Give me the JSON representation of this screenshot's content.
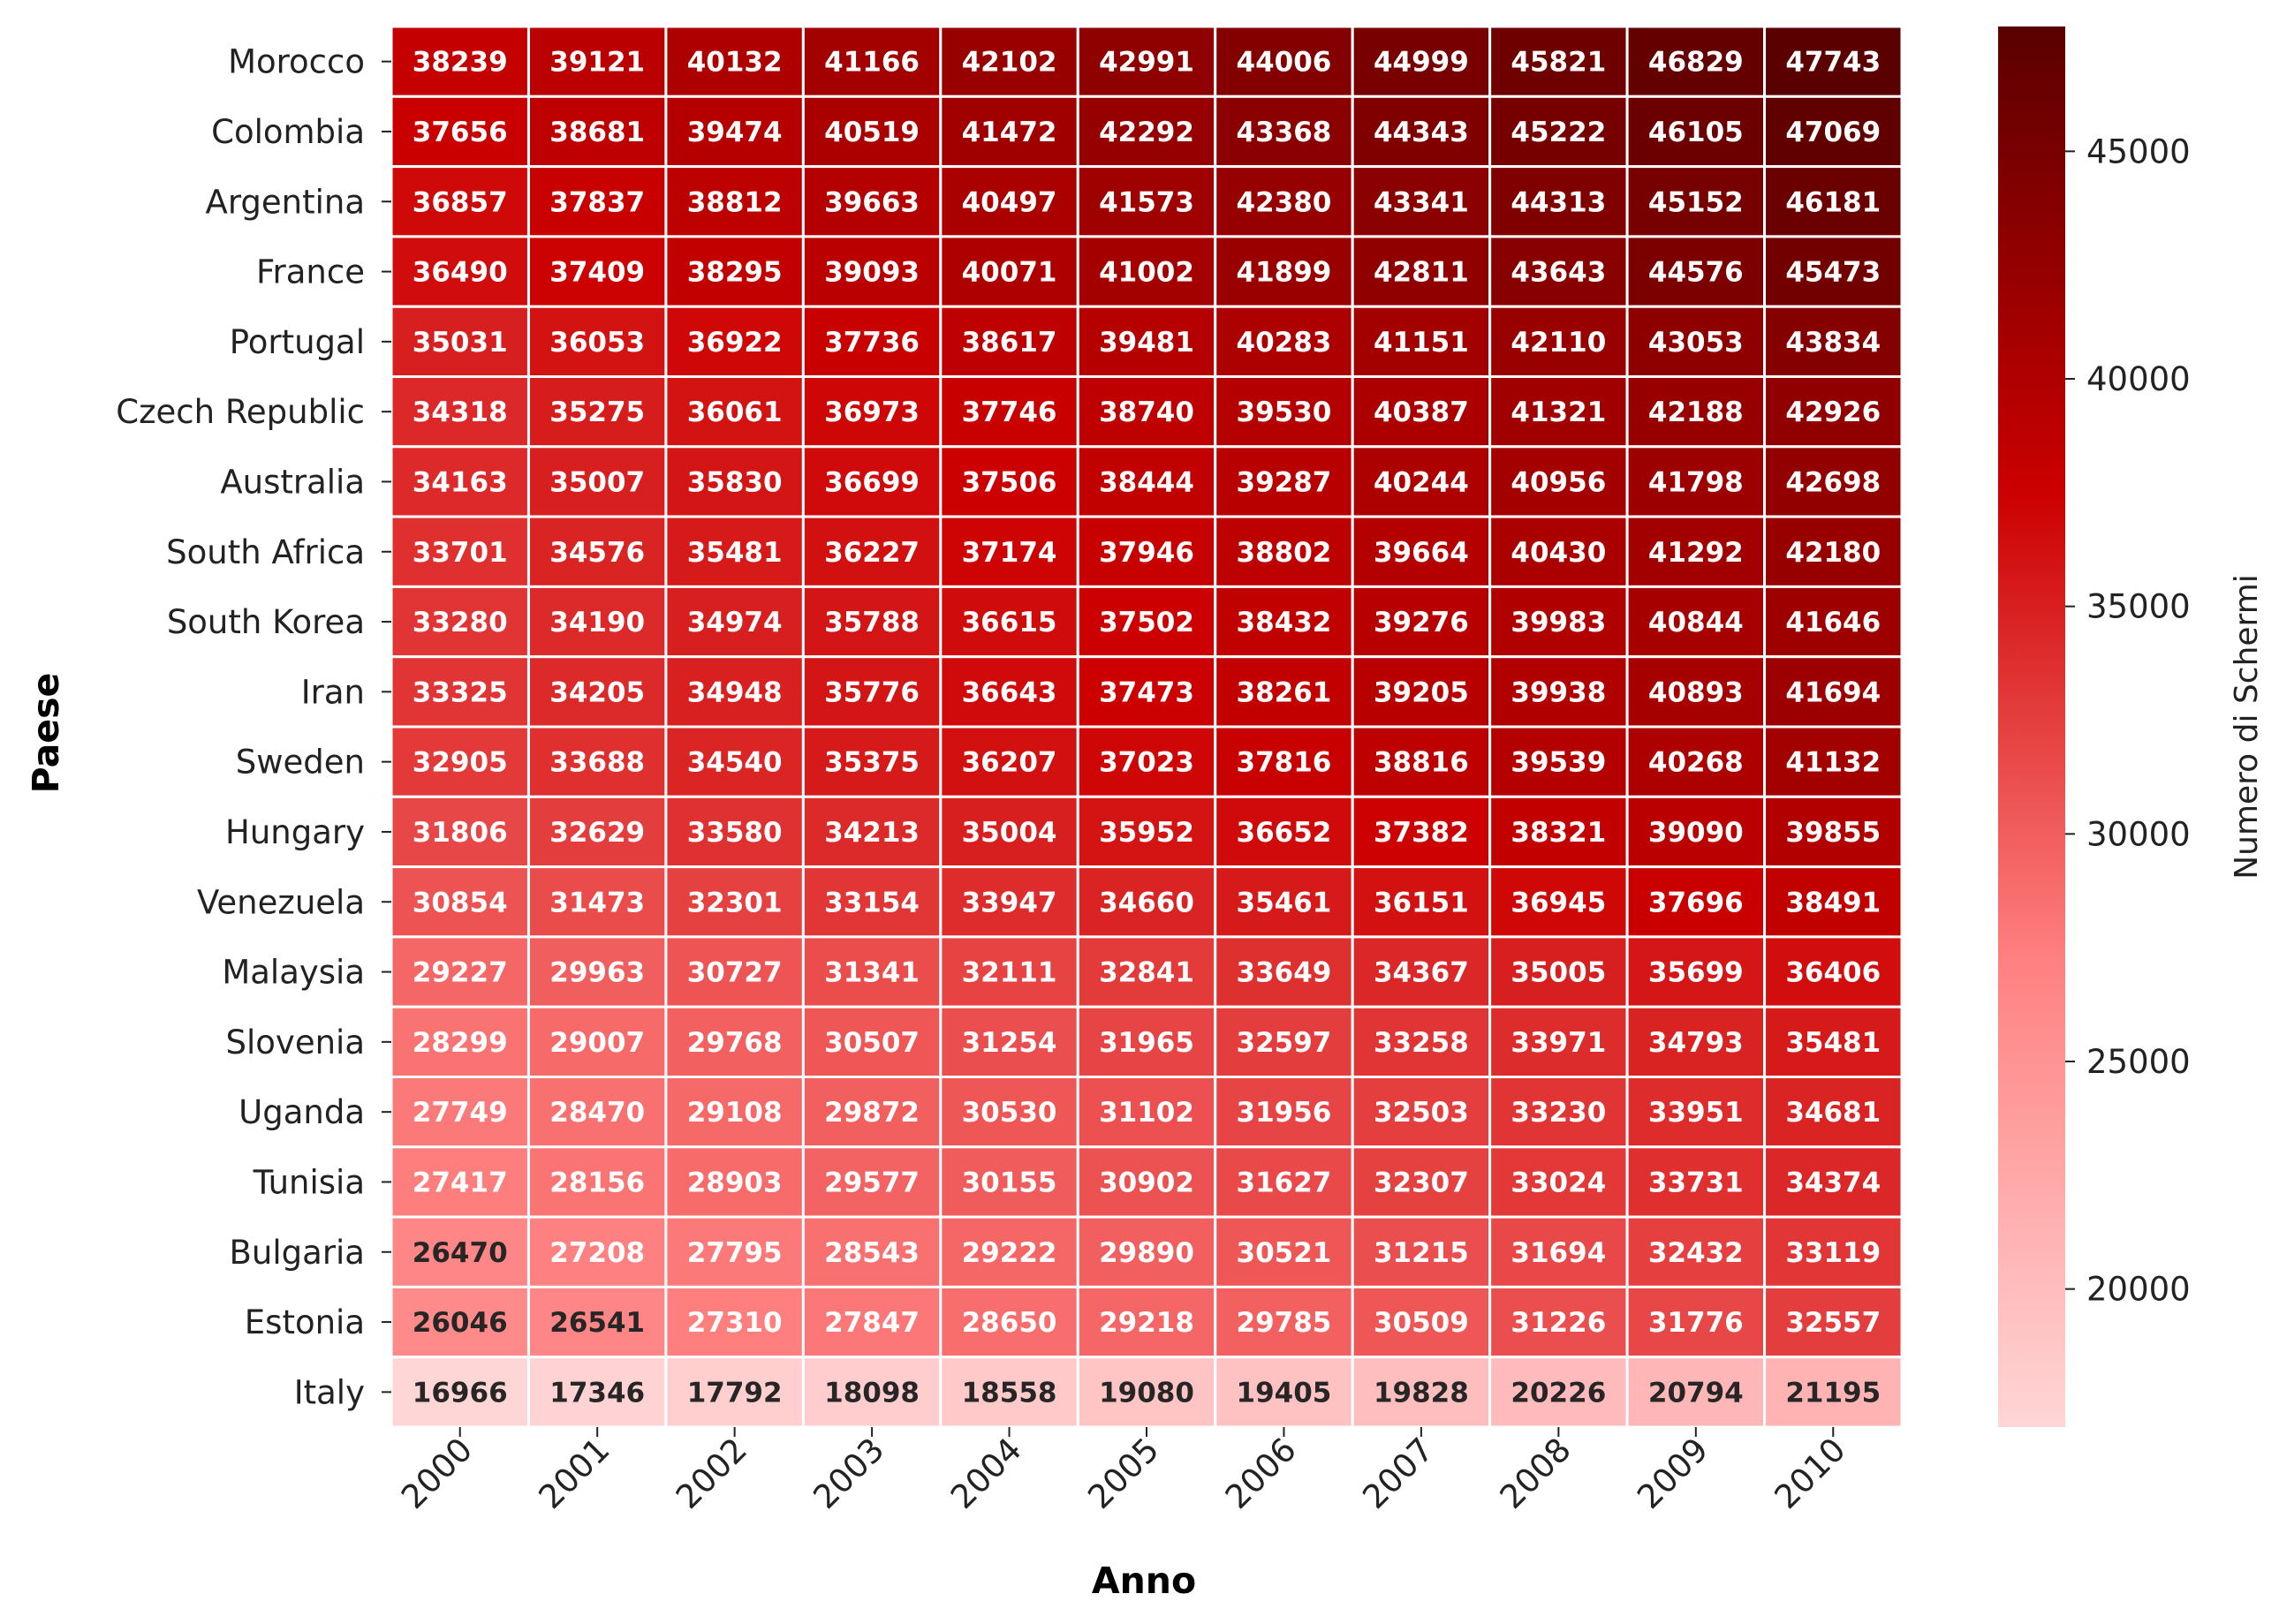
{
  "chart_data": {
    "type": "heatmap",
    "xlabel": "Anno",
    "ylabel": "Paese",
    "colorbar_label": "Numero di Schermi",
    "x": [
      "2000",
      "2001",
      "2002",
      "2003",
      "2004",
      "2005",
      "2006",
      "2007",
      "2008",
      "2009",
      "2010"
    ],
    "y": [
      "Morocco",
      "Colombia",
      "Argentina",
      "France",
      "Portugal",
      "Czech Republic",
      "Australia",
      "South Africa",
      "South Korea",
      "Iran",
      "Sweden",
      "Hungary",
      "Venezuela",
      "Malaysia",
      "Slovenia",
      "Uganda",
      "Tunisia",
      "Bulgaria",
      "Estonia",
      "Italy"
    ],
    "values": [
      [
        38239,
        39121,
        40132,
        41166,
        42102,
        42991,
        44006,
        44999,
        45821,
        46829,
        47743
      ],
      [
        37656,
        38681,
        39474,
        40519,
        41472,
        42292,
        43368,
        44343,
        45222,
        46105,
        47069
      ],
      [
        36857,
        37837,
        38812,
        39663,
        40497,
        41573,
        42380,
        43341,
        44313,
        45152,
        46181
      ],
      [
        36490,
        37409,
        38295,
        39093,
        40071,
        41002,
        41899,
        42811,
        43643,
        44576,
        45473
      ],
      [
        35031,
        36053,
        36922,
        37736,
        38617,
        39481,
        40283,
        41151,
        42110,
        43053,
        43834
      ],
      [
        34318,
        35275,
        36061,
        36973,
        37746,
        38740,
        39530,
        40387,
        41321,
        42188,
        42926
      ],
      [
        34163,
        35007,
        35830,
        36699,
        37506,
        38444,
        39287,
        40244,
        40956,
        41798,
        42698
      ],
      [
        33701,
        34576,
        35481,
        36227,
        37174,
        37946,
        38802,
        39664,
        40430,
        41292,
        42180
      ],
      [
        33280,
        34190,
        34974,
        35788,
        36615,
        37502,
        38432,
        39276,
        39983,
        40844,
        41646
      ],
      [
        33325,
        34205,
        34948,
        35776,
        36643,
        37473,
        38261,
        39205,
        39938,
        40893,
        41694
      ],
      [
        32905,
        33688,
        34540,
        35375,
        36207,
        37023,
        37816,
        38816,
        39539,
        40268,
        41132
      ],
      [
        31806,
        32629,
        33580,
        34213,
        35004,
        35952,
        36652,
        37382,
        38321,
        39090,
        39855
      ],
      [
        30854,
        31473,
        32301,
        33154,
        33947,
        34660,
        35461,
        36151,
        36945,
        37696,
        38491
      ],
      [
        29227,
        29963,
        30727,
        31341,
        32111,
        32841,
        33649,
        34367,
        35005,
        35699,
        36406
      ],
      [
        28299,
        29007,
        29768,
        30507,
        31254,
        31965,
        32597,
        33258,
        33971,
        34793,
        35481
      ],
      [
        27749,
        28470,
        29108,
        29872,
        30530,
        31102,
        31956,
        32503,
        33230,
        33951,
        34681
      ],
      [
        27417,
        28156,
        28903,
        29577,
        30155,
        30902,
        31627,
        32307,
        33024,
        33731,
        34374
      ],
      [
        26470,
        27208,
        27795,
        28543,
        29222,
        29890,
        30521,
        31215,
        31694,
        32432,
        33119
      ],
      [
        26046,
        26541,
        27310,
        27847,
        28650,
        29218,
        29785,
        30509,
        31226,
        31776,
        32557
      ],
      [
        16966,
        17346,
        17792,
        18098,
        18558,
        19080,
        19405,
        19828,
        20226,
        20794,
        21195
      ]
    ],
    "colorbar_ticks": [
      20000,
      25000,
      30000,
      35000,
      40000,
      45000
    ],
    "color_range": [
      16966,
      47743
    ],
    "colormap": [
      "#ffd6d6",
      "#ff8080",
      "#cc0000",
      "#5a0000"
    ],
    "cell_text_colors": {
      "light": "#ffffff",
      "dark": "#262626"
    },
    "grid": false
  }
}
